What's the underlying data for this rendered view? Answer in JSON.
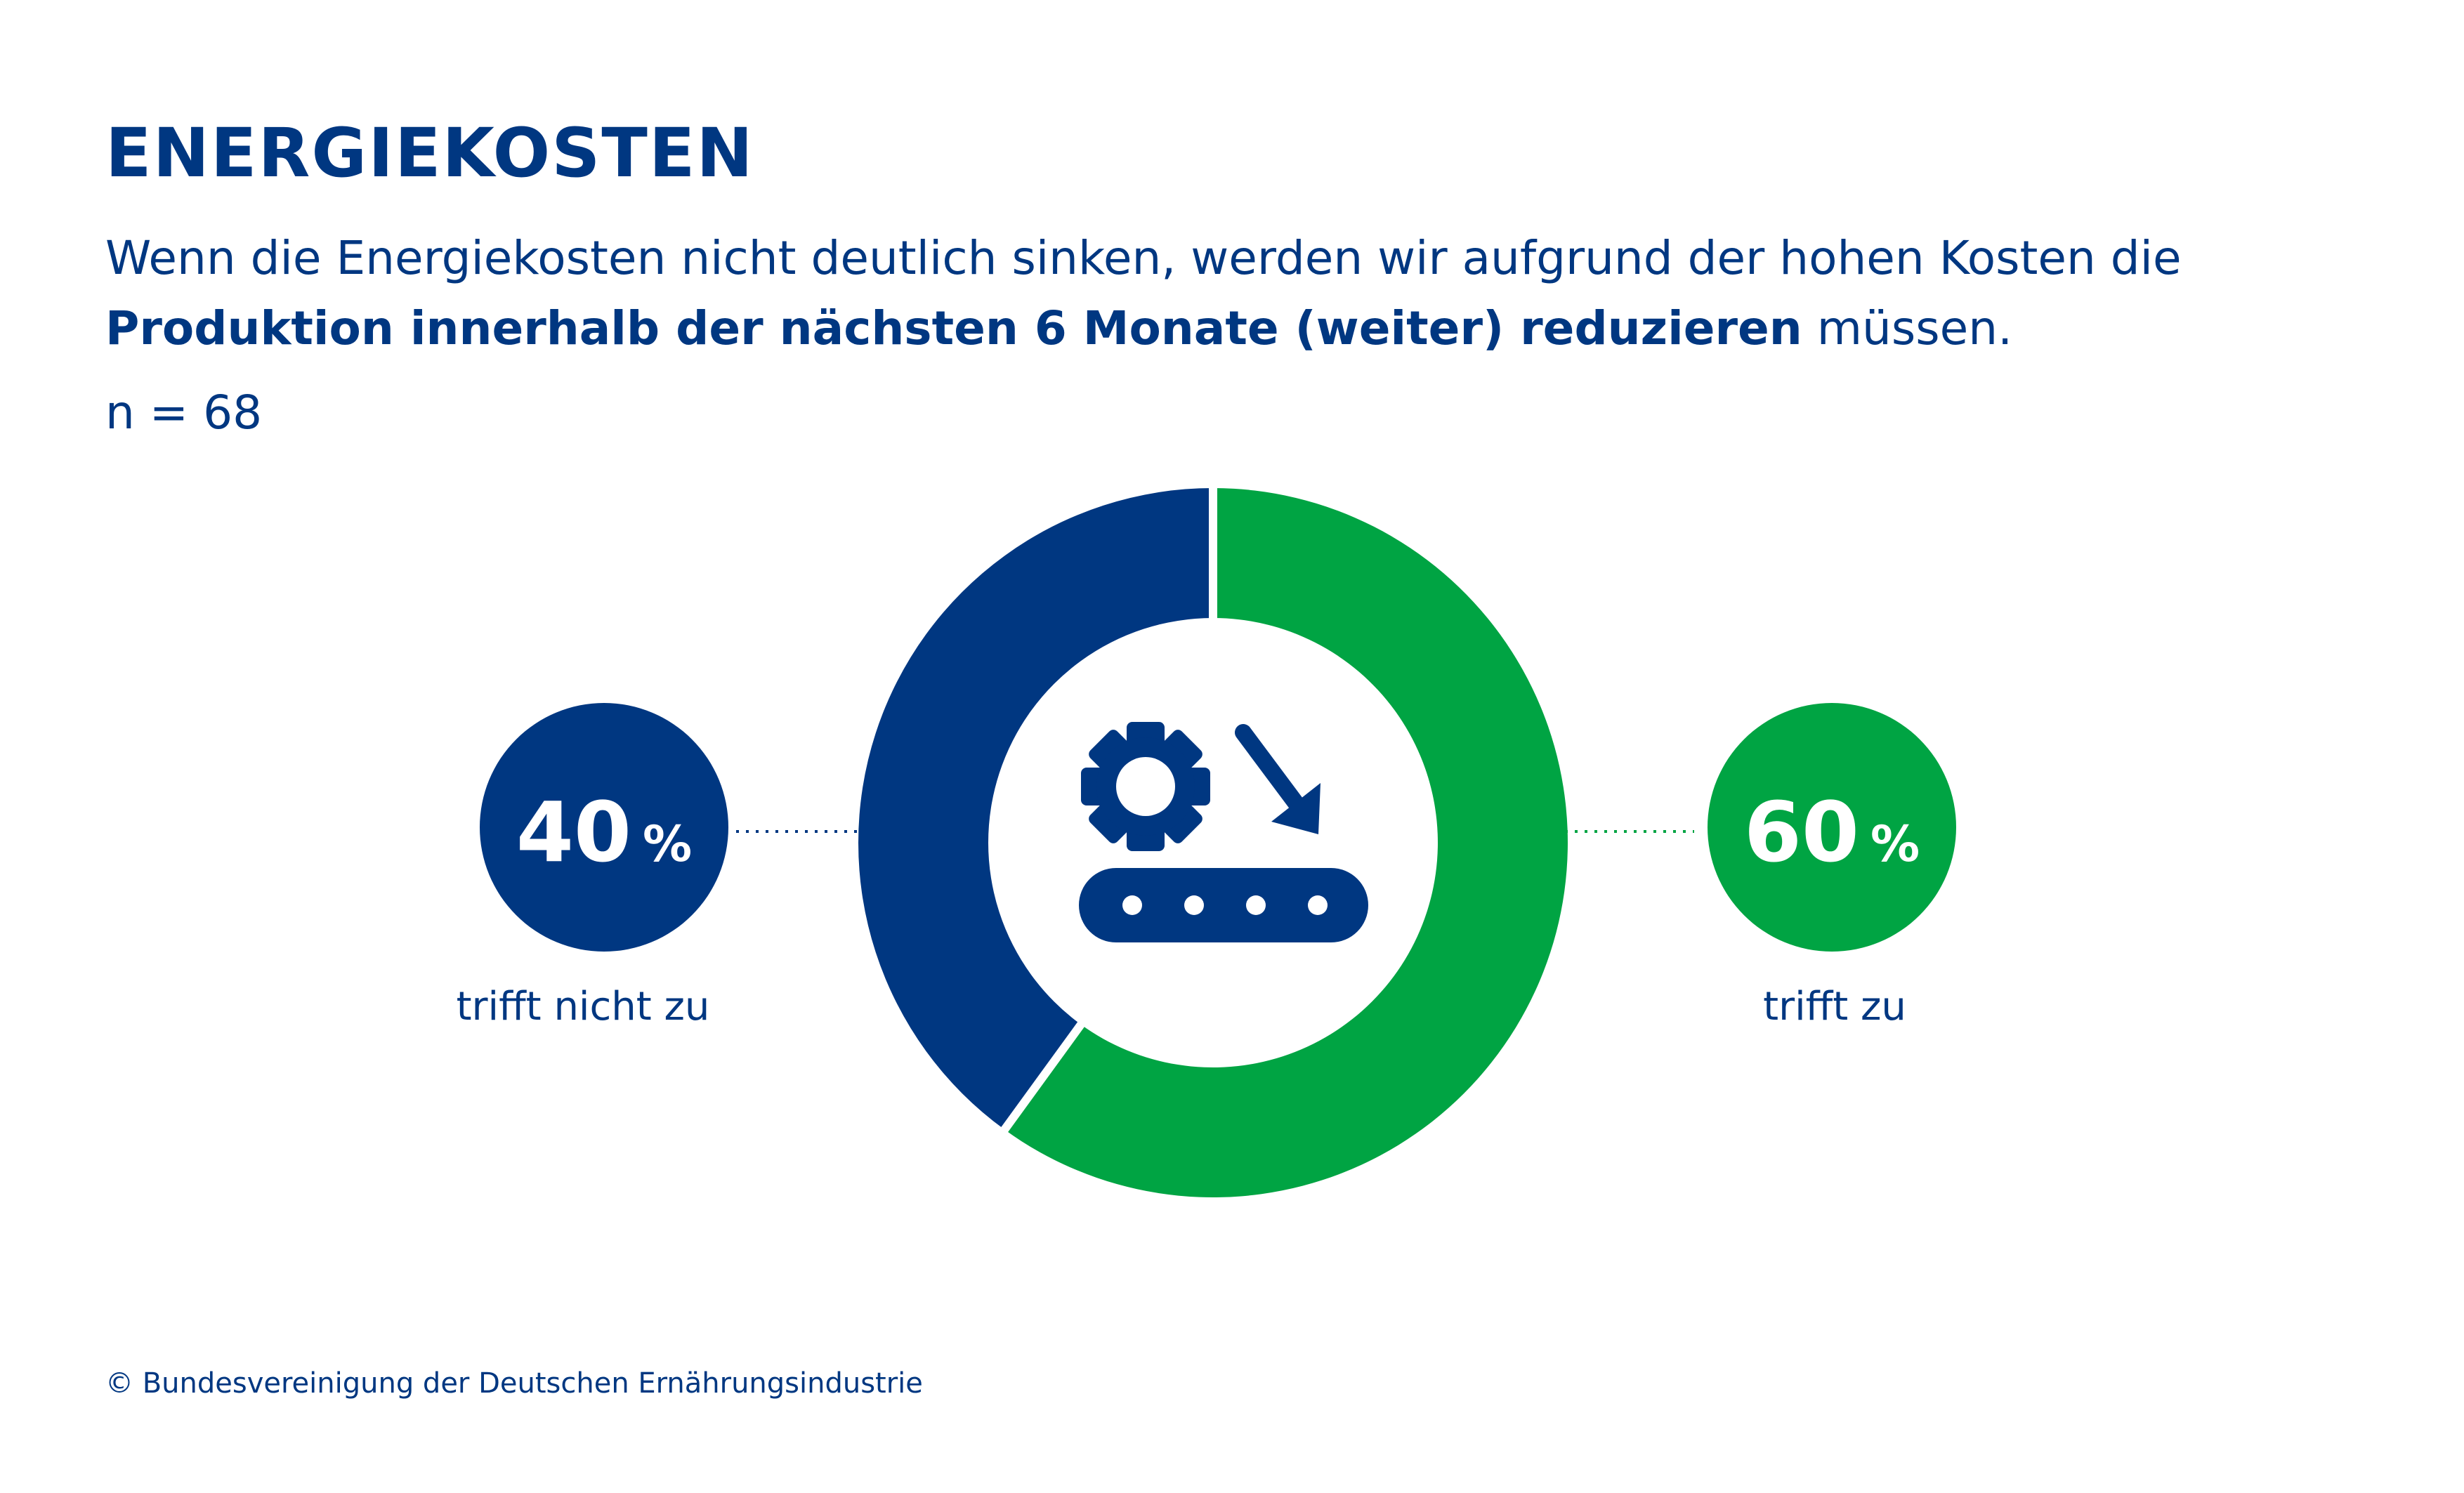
{
  "title": "ENERGIEKOSTEN",
  "subtitle": {
    "line1": "Wenn die Energiekosten nicht deutlich sinken, werden wir aufgrund der hohen Kosten die",
    "bold": "Produktion innerhalb der nächsten 6 Monate (weiter) reduzieren",
    "rest": " müssen."
  },
  "sample": "n = 68",
  "footer": "© Bundesvereinigung der Deutschen Ernährungsindustrie",
  "icon": "production-reduction-icon",
  "colors": {
    "blue": "#003781",
    "green": "#00a443",
    "white": "#ffffff"
  },
  "chart_data": {
    "type": "pie",
    "donut": true,
    "categories": [
      "trifft zu",
      "trifft nicht zu"
    ],
    "values": [
      60,
      40
    ],
    "value_labels": [
      "60",
      "40"
    ],
    "unit": "%"
  }
}
